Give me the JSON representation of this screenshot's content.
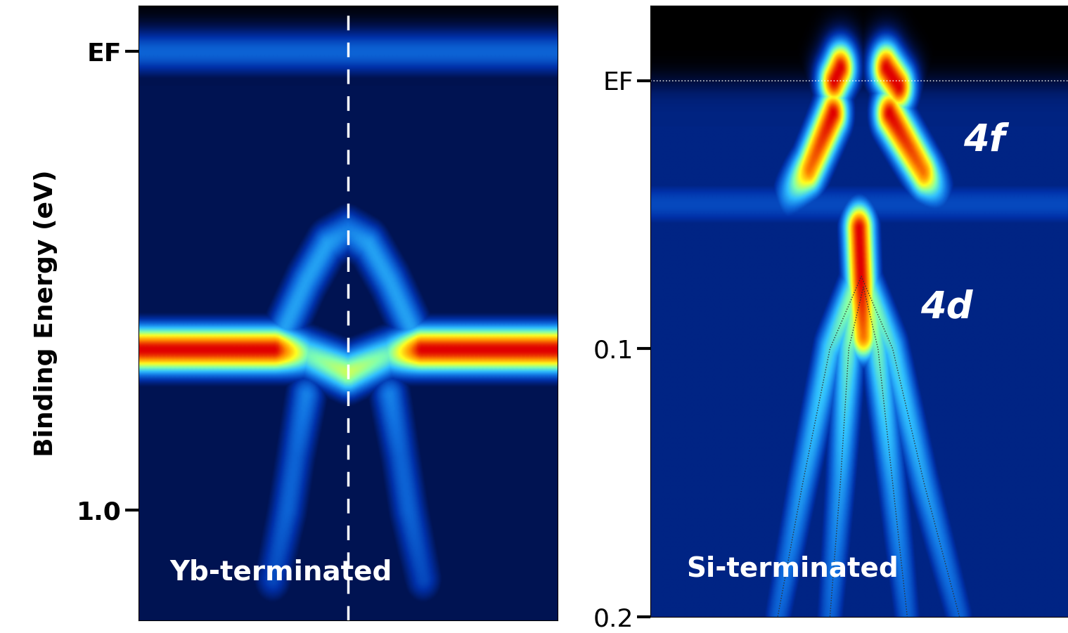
{
  "chart_data": [
    {
      "type": "heatmap",
      "y_label": "Binding Energy (eV)",
      "annotations": [
        "Yb-terminated"
      ],
      "xlim": [
        -1,
        1
      ],
      "ylim": [
        1.24,
        -0.1
      ],
      "yticks": [
        {
          "value": 0,
          "label": "EF"
        },
        1.0
      ],
      "tick_labels": "y",
      "bands": [
        {
          "x": [
            -1,
            1
          ],
          "energy": [
            0.0,
            0.0
          ],
          "intensity": [
            0.35,
            0.35
          ]
        },
        {
          "x": [
            -1,
            -0.35,
            -0.2,
            0,
            0.2,
            0.35,
            1
          ],
          "energy": [
            0.65,
            0.65,
            0.66,
            0.7,
            0.66,
            0.65,
            0.65
          ],
          "intensity": [
            1.0,
            1.0,
            0.6,
            0.7,
            0.6,
            1.0,
            1.0
          ]
        },
        {
          "x": [
            -0.3,
            -0.2,
            -0.1,
            0,
            0.1,
            0.2,
            0.3
          ],
          "energy": [
            0.6,
            0.5,
            0.42,
            0.39,
            0.42,
            0.5,
            0.6
          ],
          "intensity": [
            0.45,
            0.45,
            0.45,
            0.4,
            0.45,
            0.45,
            0.45
          ]
        },
        {
          "x": [
            -0.36,
            -0.29,
            -0.25,
            -0.2
          ],
          "energy": [
            1.15,
            1.0,
            0.88,
            0.75
          ],
          "intensity": [
            0.3,
            0.35,
            0.35,
            0.4
          ]
        },
        {
          "x": [
            0.36,
            0.29,
            0.25,
            0.2
          ],
          "energy": [
            1.15,
            1.0,
            0.88,
            0.75
          ],
          "intensity": [
            0.3,
            0.35,
            0.35,
            0.4
          ]
        }
      ]
    },
    {
      "type": "heatmap",
      "annotations": [
        "Si-terminated",
        "4f",
        "4d"
      ],
      "xlim": [
        -1,
        1
      ],
      "ylim": [
        0.2,
        -0.028
      ],
      "yticks": [
        {
          "value": 0,
          "label": "EF"
        },
        0.1,
        0.2
      ],
      "tick_labels": "y",
      "bands": [
        {
          "x": [
            -1,
            1
          ],
          "energy": [
            0.046,
            0.046
          ],
          "intensity": [
            0.3,
            0.3
          ]
        },
        {
          "x": [
            -0.12,
            -0.09
          ],
          "energy": [
            0.0,
            -0.005
          ],
          "intensity": [
            1.0,
            1.0
          ]
        },
        {
          "x": [
            0.13,
            0.19
          ],
          "energy": [
            -0.005,
            0.002
          ],
          "intensity": [
            1.0,
            1.0
          ]
        },
        {
          "x": [
            -0.125,
            -0.24,
            -0.34
          ],
          "energy": [
            0.012,
            0.033,
            0.042
          ],
          "intensity": [
            1.0,
            0.9,
            0.45
          ]
        },
        {
          "x": [
            0.145,
            0.31,
            0.38
          ],
          "energy": [
            0.012,
            0.034,
            0.04
          ],
          "intensity": [
            1.0,
            0.9,
            0.45
          ]
        },
        {
          "x": [
            0.0,
            0.01,
            0.02
          ],
          "energy": [
            0.055,
            0.075,
            0.095
          ],
          "intensity": [
            1.0,
            1.0,
            0.9
          ]
        },
        {
          "x": [
            -0.39,
            -0.27,
            -0.14,
            0.01,
            0.16,
            0.31,
            0.48
          ],
          "energy": [
            0.2,
            0.15,
            0.1,
            0.073,
            0.1,
            0.15,
            0.2
          ],
          "intensity": [
            0.35,
            0.45,
            0.55,
            0.7,
            0.55,
            0.45,
            0.35
          ],
          "line_style": "dotted"
        },
        {
          "x": [
            -0.14,
            -0.09,
            -0.05,
            0.02,
            0.09,
            0.16,
            0.23
          ],
          "energy": [
            0.2,
            0.15,
            0.1,
            0.077,
            0.1,
            0.15,
            0.2
          ],
          "intensity": [
            0.35,
            0.45,
            0.6,
            0.8,
            0.6,
            0.45,
            0.35
          ],
          "line_style": "dotted"
        }
      ]
    }
  ]
}
